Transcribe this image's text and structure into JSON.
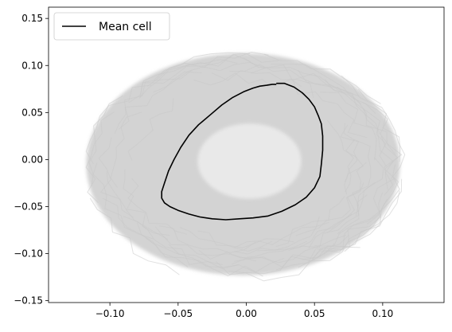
{
  "chart_data": {
    "type": "line",
    "title": "",
    "xlabel": "",
    "ylabel": "",
    "xlim": [
      -0.145,
      0.145
    ],
    "ylim": [
      -0.152,
      0.162
    ],
    "xticks": [
      -0.1,
      -0.05,
      0.0,
      0.05,
      0.1
    ],
    "xtick_labels": [
      "−0.10",
      "−0.05",
      "0.00",
      "0.05",
      "0.10"
    ],
    "yticks": [
      0.15,
      0.1,
      0.05,
      0.0,
      -0.05,
      -0.1,
      -0.15
    ],
    "ytick_labels": [
      "0.15",
      "0.10",
      "0.05",
      "0.00",
      "−0.05",
      "−0.10",
      "−0.15"
    ],
    "grid": false,
    "legend": {
      "position": "upper-left",
      "entries": [
        "Mean cell"
      ]
    },
    "background_traces_color": "#d3d3d3",
    "series": [
      {
        "name": "Mean cell",
        "color": "#000000",
        "x": [
          0.022,
          0.019,
          0.015,
          0.01,
          0.005,
          -0.002,
          -0.01,
          -0.018,
          -0.026,
          -0.035,
          -0.042,
          -0.048,
          -0.053,
          -0.057,
          -0.06,
          -0.062,
          -0.062,
          -0.06,
          -0.056,
          -0.05,
          -0.042,
          -0.034,
          -0.025,
          -0.015,
          -0.005,
          0.005,
          0.016,
          0.026,
          0.036,
          0.044,
          0.05,
          0.054,
          0.055,
          0.056,
          0.056,
          0.055,
          0.053,
          0.05,
          0.046,
          0.041,
          0.035,
          0.028,
          0.022
        ],
        "y": [
          0.08,
          0.08,
          0.079,
          0.078,
          0.076,
          0.072,
          0.066,
          0.058,
          0.048,
          0.037,
          0.026,
          0.013,
          0.0,
          -0.012,
          -0.025,
          -0.034,
          -0.041,
          -0.046,
          -0.05,
          -0.054,
          -0.058,
          -0.061,
          -0.063,
          -0.064,
          -0.063,
          -0.062,
          -0.06,
          -0.055,
          -0.048,
          -0.04,
          -0.03,
          -0.018,
          -0.005,
          0.01,
          0.025,
          0.038,
          0.046,
          0.056,
          0.064,
          0.071,
          0.077,
          0.081,
          0.081
        ]
      }
    ]
  }
}
